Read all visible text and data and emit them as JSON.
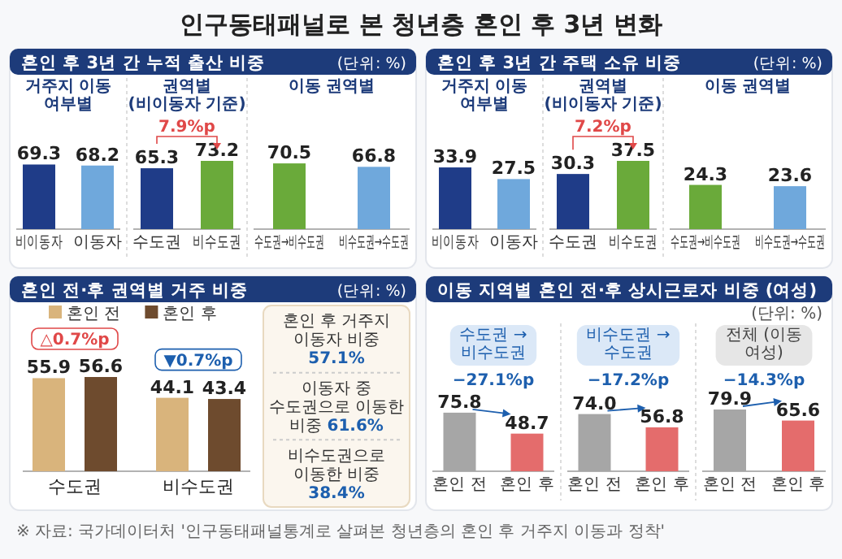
{
  "chart_data": [
    {
      "type": "other",
      "title": "인구동태패널로 본 청년층 혼인 후 3년 변화",
      "annotations": [
        "※ 자료: 국가데이터처 '인구동태패널통계로 살펴본 청년층의 혼인 후 거주지 이동과 정착'"
      ]
    },
    {
      "type": "bar",
      "title": "혼인 후 3년 간 누적 출산 비중",
      "subtitle": "거주지 이동 여부별",
      "annotations": [
        "(단위: %)"
      ],
      "categories": [
        "비이동자",
        "이동자"
      ],
      "values": [
        69.3,
        68.2
      ],
      "colors": [
        "#1f3c88",
        "#6fa8dc"
      ],
      "data_labels": true
    },
    {
      "type": "bar",
      "subtitle": "권역별 (비이동자 기준)",
      "annotations": [
        "7.9%p"
      ],
      "categories": [
        "수도권",
        "비수도권"
      ],
      "values": [
        65.3,
        73.2
      ],
      "colors": [
        "#1f3c88",
        "#6aaa3a"
      ],
      "data_labels": true
    },
    {
      "type": "bar",
      "subtitle": "이동 권역별",
      "categories": [
        "수도권→비수도권",
        "비수도권→수도권"
      ],
      "values": [
        70.5,
        66.8
      ],
      "colors": [
        "#6aaa3a",
        "#6fa8dc"
      ],
      "data_labels": true
    },
    {
      "type": "bar",
      "title": "혼인 후 3년 간 주택 소유 비중",
      "subtitle": "거주지 이동 여부별",
      "annotations": [
        "(단위: %)"
      ],
      "categories": [
        "비이동자",
        "이동자"
      ],
      "values": [
        33.9,
        27.5
      ],
      "colors": [
        "#1f3c88",
        "#6fa8dc"
      ],
      "data_labels": true
    },
    {
      "type": "bar",
      "subtitle": "권역별 (비이동자 기준)",
      "annotations": [
        "7.2%p"
      ],
      "categories": [
        "수도권",
        "비수도권"
      ],
      "values": [
        30.3,
        37.5
      ],
      "colors": [
        "#1f3c88",
        "#6aaa3a"
      ],
      "data_labels": true
    },
    {
      "type": "bar",
      "subtitle": "이동 권역별",
      "categories": [
        "수도권→비수도권",
        "비수도권→수도권"
      ],
      "values": [
        24.3,
        23.6
      ],
      "colors": [
        "#6aaa3a",
        "#6fa8dc"
      ],
      "data_labels": true
    },
    {
      "type": "bar",
      "title": "혼인 전·후 권역별 거주 비중",
      "annotations": [
        "(단위: %)",
        "△0.7%p",
        "▼0.7%p"
      ],
      "categories": [
        "수도권",
        "비수도권"
      ],
      "legend": "top left",
      "data_labels": true,
      "series": [
        {
          "name": "혼인 전",
          "color": "#d9b47c",
          "values": [
            55.9,
            44.1
          ]
        },
        {
          "name": "혼인 후",
          "color": "#6e4b2e",
          "values": [
            56.6,
            43.4
          ]
        }
      ]
    },
    {
      "type": "other",
      "annotations": [
        "혼인 후 거주지 이동자 비중 57.1%",
        "이동자 중 수도권으로 이동한 비중 61.6%",
        "비수도권으로 이동한 비중 38.4%"
      ]
    },
    {
      "type": "bar",
      "title": "이동 지역별 혼인 전·후 상시근로자 비중 (여성)",
      "subtitle": "수도권 → 비수도권",
      "annotations": [
        "(단위: %)",
        "−27.1%p"
      ],
      "categories": [
        "혼인 전",
        "혼인 후"
      ],
      "values": [
        75.8,
        48.7
      ],
      "colors": [
        "#a6a6a6",
        "#e46c6c"
      ],
      "data_labels": true
    },
    {
      "type": "bar",
      "subtitle": "비수도권 → 수도권",
      "annotations": [
        "−17.2%p"
      ],
      "categories": [
        "혼인 전",
        "혼인 후"
      ],
      "values": [
        74.0,
        56.8
      ],
      "colors": [
        "#a6a6a6",
        "#e46c6c"
      ],
      "value_labels": [
        "74.0",
        "56.8"
      ]
    },
    {
      "type": "bar",
      "subtitle": "전체 (이동 여성)",
      "annotations": [
        "−14.3%p"
      ],
      "categories": [
        "혼인 전",
        "혼인 후"
      ],
      "values": [
        79.9,
        65.6
      ],
      "colors": [
        "#a6a6a6",
        "#e46c6c"
      ],
      "data_labels": true
    }
  ]
}
